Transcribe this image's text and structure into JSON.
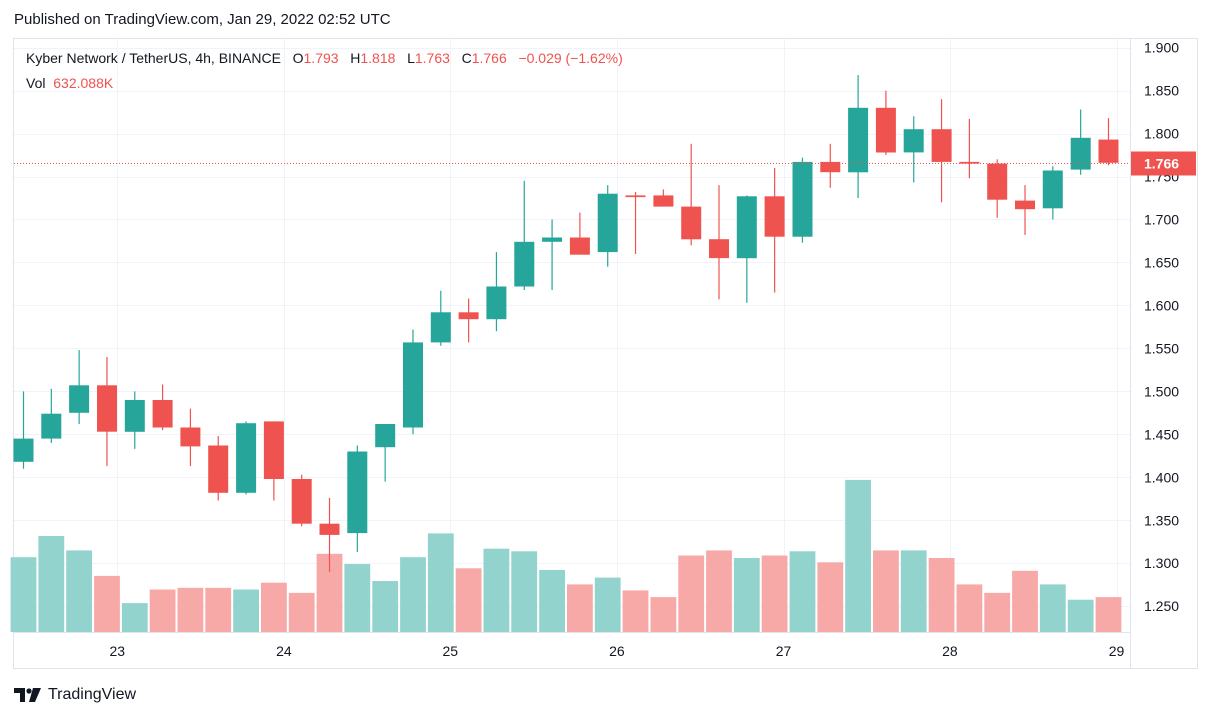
{
  "published": "Published on TradingView.com, Jan 29, 2022 02:52 UTC",
  "brand": "TradingView",
  "legend": {
    "symbol": "Kyber Network / TetherUS, 4h, BINANCE",
    "o_label": "O",
    "o": "1.793",
    "h_label": "H",
    "h": "1.818",
    "l_label": "L",
    "l": "1.763",
    "c_label": "C",
    "c": "1.766",
    "change": "−0.029 (−1.62%)",
    "vol_label": "Vol",
    "vol": "632.088K"
  },
  "colors": {
    "up": "#26a69a",
    "down": "#ef5350",
    "up_vol": "#93d3cd",
    "down_vol": "#f7a9a7",
    "grid": "#f0f3fa",
    "price_line": "#ef5350"
  },
  "chart_data": {
    "type": "candlestick",
    "title": "Kyber Network / TetherUS, 4h, BINANCE",
    "y_ticks": [
      "1.250",
      "1.300",
      "1.350",
      "1.400",
      "1.450",
      "1.500",
      "1.550",
      "1.600",
      "1.650",
      "1.700",
      "1.750",
      "1.800",
      "1.850",
      "1.900"
    ],
    "ylim": [
      1.22,
      1.91
    ],
    "x_tick_labels": [
      {
        "label": "23",
        "index": 3.37
      },
      {
        "label": "24",
        "index": 9.36
      },
      {
        "label": "25",
        "index": 15.34
      },
      {
        "label": "26",
        "index": 21.33
      },
      {
        "label": "27",
        "index": 27.32
      },
      {
        "label": "28",
        "index": 33.3
      },
      {
        "label": "29",
        "index": 39.29
      }
    ],
    "last_price": "1.766",
    "last_price_value": 1.766,
    "candles": [
      {
        "o": 1.418,
        "h": 1.5,
        "l": 1.41,
        "c": 1.445
      },
      {
        "o": 1.445,
        "h": 1.503,
        "l": 1.44,
        "c": 1.474
      },
      {
        "o": 1.475,
        "h": 1.548,
        "l": 1.462,
        "c": 1.507
      },
      {
        "o": 1.507,
        "h": 1.54,
        "l": 1.413,
        "c": 1.453
      },
      {
        "o": 1.453,
        "h": 1.5,
        "l": 1.433,
        "c": 1.49
      },
      {
        "o": 1.49,
        "h": 1.508,
        "l": 1.455,
        "c": 1.458
      },
      {
        "o": 1.458,
        "h": 1.48,
        "l": 1.413,
        "c": 1.436
      },
      {
        "o": 1.437,
        "h": 1.448,
        "l": 1.373,
        "c": 1.382
      },
      {
        "o": 1.382,
        "h": 1.465,
        "l": 1.38,
        "c": 1.463
      },
      {
        "o": 1.465,
        "h": 1.465,
        "l": 1.373,
        "c": 1.398
      },
      {
        "o": 1.398,
        "h": 1.403,
        "l": 1.343,
        "c": 1.346
      },
      {
        "o": 1.346,
        "h": 1.376,
        "l": 1.29,
        "c": 1.333
      },
      {
        "o": 1.335,
        "h": 1.437,
        "l": 1.313,
        "c": 1.43
      },
      {
        "o": 1.435,
        "h": 1.46,
        "l": 1.395,
        "c": 1.462
      },
      {
        "o": 1.458,
        "h": 1.572,
        "l": 1.45,
        "c": 1.557
      },
      {
        "o": 1.557,
        "h": 1.617,
        "l": 1.553,
        "c": 1.592
      },
      {
        "o": 1.592,
        "h": 1.608,
        "l": 1.557,
        "c": 1.584
      },
      {
        "o": 1.584,
        "h": 1.662,
        "l": 1.57,
        "c": 1.622
      },
      {
        "o": 1.622,
        "h": 1.745,
        "l": 1.618,
        "c": 1.674
      },
      {
        "o": 1.674,
        "h": 1.7,
        "l": 1.618,
        "c": 1.679
      },
      {
        "o": 1.679,
        "h": 1.708,
        "l": 1.66,
        "c": 1.659
      },
      {
        "o": 1.662,
        "h": 1.74,
        "l": 1.645,
        "c": 1.73
      },
      {
        "o": 1.728,
        "h": 1.732,
        "l": 1.66,
        "c": 1.726
      },
      {
        "o": 1.728,
        "h": 1.735,
        "l": 1.715,
        "c": 1.715
      },
      {
        "o": 1.715,
        "h": 1.788,
        "l": 1.67,
        "c": 1.677
      },
      {
        "o": 1.677,
        "h": 1.74,
        "l": 1.607,
        "c": 1.655
      },
      {
        "o": 1.655,
        "h": 1.728,
        "l": 1.603,
        "c": 1.727
      },
      {
        "o": 1.727,
        "h": 1.76,
        "l": 1.615,
        "c": 1.68
      },
      {
        "o": 1.68,
        "h": 1.772,
        "l": 1.673,
        "c": 1.767
      },
      {
        "o": 1.767,
        "h": 1.788,
        "l": 1.737,
        "c": 1.755
      },
      {
        "o": 1.755,
        "h": 1.868,
        "l": 1.725,
        "c": 1.83
      },
      {
        "o": 1.83,
        "h": 1.85,
        "l": 1.775,
        "c": 1.778
      },
      {
        "o": 1.778,
        "h": 1.82,
        "l": 1.743,
        "c": 1.805
      },
      {
        "o": 1.805,
        "h": 1.84,
        "l": 1.72,
        "c": 1.767
      },
      {
        "o": 1.767,
        "h": 1.817,
        "l": 1.748,
        "c": 1.765
      },
      {
        "o": 1.765,
        "h": 1.77,
        "l": 1.702,
        "c": 1.723
      },
      {
        "o": 1.722,
        "h": 1.74,
        "l": 1.682,
        "c": 1.712
      },
      {
        "o": 1.713,
        "h": 1.762,
        "l": 1.7,
        "c": 1.757
      },
      {
        "o": 1.758,
        "h": 1.828,
        "l": 1.752,
        "c": 1.795
      },
      {
        "o": 1.793,
        "h": 1.818,
        "l": 1.763,
        "c": 1.766
      }
    ],
    "volume": [
      {
        "v": 88,
        "up": true
      },
      {
        "v": 113,
        "up": true
      },
      {
        "v": 96,
        "up": true
      },
      {
        "v": 66,
        "up": false
      },
      {
        "v": 34,
        "up": true
      },
      {
        "v": 50,
        "up": false
      },
      {
        "v": 52,
        "up": false
      },
      {
        "v": 52,
        "up": false
      },
      {
        "v": 50,
        "up": true
      },
      {
        "v": 58,
        "up": false
      },
      {
        "v": 46,
        "up": false
      },
      {
        "v": 92,
        "up": false
      },
      {
        "v": 80,
        "up": true
      },
      {
        "v": 60,
        "up": true
      },
      {
        "v": 88,
        "up": true
      },
      {
        "v": 116,
        "up": true
      },
      {
        "v": 75,
        "up": false
      },
      {
        "v": 98,
        "up": true
      },
      {
        "v": 95,
        "up": true
      },
      {
        "v": 73,
        "up": true
      },
      {
        "v": 56,
        "up": false
      },
      {
        "v": 64,
        "up": true
      },
      {
        "v": 49,
        "up": false
      },
      {
        "v": 41,
        "up": false
      },
      {
        "v": 90,
        "up": false
      },
      {
        "v": 96,
        "up": false
      },
      {
        "v": 87,
        "up": true
      },
      {
        "v": 90,
        "up": false
      },
      {
        "v": 95,
        "up": true
      },
      {
        "v": 82,
        "up": false
      },
      {
        "v": 179,
        "up": true
      },
      {
        "v": 96,
        "up": false
      },
      {
        "v": 96,
        "up": true
      },
      {
        "v": 87,
        "up": false
      },
      {
        "v": 56,
        "up": false
      },
      {
        "v": 46,
        "up": false
      },
      {
        "v": 72,
        "up": false
      },
      {
        "v": 56,
        "up": true
      },
      {
        "v": 38,
        "up": true
      },
      {
        "v": 41,
        "up": false
      }
    ]
  }
}
